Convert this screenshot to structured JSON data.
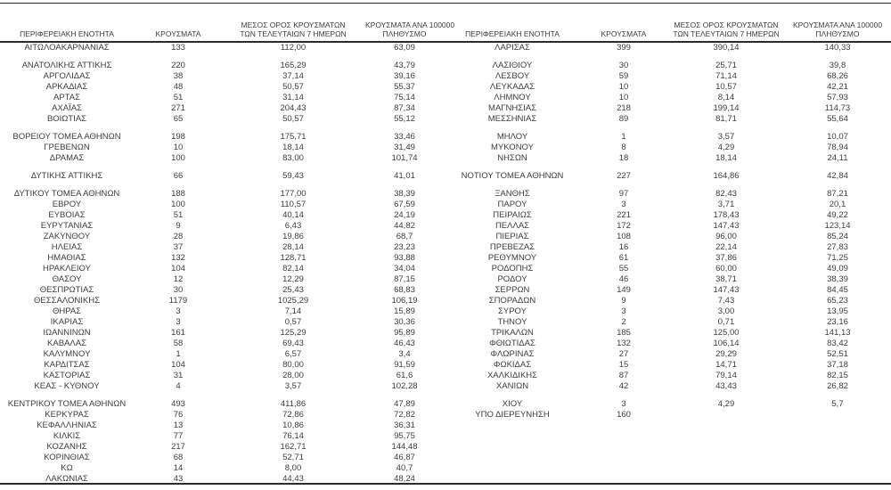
{
  "page": {
    "background_color": "#ffffff",
    "text_color": "#3d3d3d",
    "rule_color": "#2b2b2b"
  },
  "columns": {
    "region": "ΠΕΡΙΦΕΡΕΙΑΚΗ ΕΝΟΤΗΤΑ",
    "cases": "ΚΡΟΥΣΜΑΤΑ",
    "avg7_line1": "ΜΕΣΟΣ ΟΡΟΣ ΚΡΟΥΣΜΑΤΩΝ",
    "avg7_line2": "ΤΩΝ ΤΕΛΕΥΤΑΙΩΝ 7 ΗΜΕΡΩΝ",
    "per100k_line1": "ΚΡΟΥΣΜΑΤΑ ΑΝΑ 100000",
    "per100k_line2": "ΠΛΗΘΥΣΜΟ"
  },
  "left_table": {
    "groups": [
      [
        [
          "ΑΙΤΩΛΟΑΚΑΡΝΑΝΙΑΣ",
          "133",
          "112,00",
          "63,09"
        ]
      ],
      [
        [
          "ΑΝΑΤΟΛΙΚΗΣ ΑΤΤΙΚΗΣ",
          "220",
          "165,29",
          "43,79"
        ],
        [
          "ΑΡΓΟΛΙΔΑΣ",
          "38",
          "37,14",
          "39,16"
        ],
        [
          "ΑΡΚΑΔΙΑΣ",
          "48",
          "50,57",
          "55,37"
        ],
        [
          "ΑΡΤΑΣ",
          "51",
          "31,14",
          "75,14"
        ],
        [
          "ΑΧΑΪΑΣ",
          "271",
          "204,43",
          "87,34"
        ],
        [
          "ΒΟΙΩΤΙΑΣ",
          "65",
          "50,57",
          "55,12"
        ]
      ],
      [
        [
          "ΒΟΡΕΙΟΥ ΤΟΜΕΑ ΑΘΗΝΩΝ",
          "198",
          "175,71",
          "33,46"
        ],
        [
          "ΓΡΕΒΕΝΩΝ",
          "10",
          "18,14",
          "31,49"
        ],
        [
          "ΔΡΑΜΑΣ",
          "100",
          "83,00",
          "101,74"
        ]
      ],
      [
        [
          "ΔΥΤΙΚΗΣ ΑΤΤΙΚΗΣ",
          "66",
          "59,43",
          "41,01"
        ]
      ],
      [
        [
          "ΔΥΤΙΚΟΥ ΤΟΜΕΑ ΑΘΗΝΩΝ",
          "188",
          "177,00",
          "38,39"
        ],
        [
          "ΕΒΡΟΥ",
          "100",
          "110,57",
          "67,59"
        ],
        [
          "ΕΥΒΟΙΑΣ",
          "51",
          "40,14",
          "24,19"
        ],
        [
          "ΕΥΡΥΤΑΝΙΑΣ",
          "9",
          "6,43",
          "44,82"
        ],
        [
          "ΖΑΚΥΝΘΟΥ",
          "28",
          "19,86",
          "68,7"
        ],
        [
          "ΗΛΕΙΑΣ",
          "37",
          "28,14",
          "23,23"
        ],
        [
          "ΗΜΑΘΙΑΣ",
          "132",
          "128,71",
          "93,88"
        ],
        [
          "ΗΡΑΚΛΕΙΟΥ",
          "104",
          "82,14",
          "34,04"
        ],
        [
          "ΘΑΣΟΥ",
          "12",
          "12,29",
          "87,15"
        ],
        [
          "ΘΕΣΠΡΩΤΙΑΣ",
          "30",
          "25,43",
          "68,83"
        ],
        [
          "ΘΕΣΣΑΛΟΝΙΚΗΣ",
          "1179",
          "1025,29",
          "106,19"
        ],
        [
          "ΘΗΡΑΣ",
          "3",
          "7,14",
          "15,89"
        ],
        [
          "ΙΚΑΡΙΑΣ",
          "3",
          "0,57",
          "30,36"
        ],
        [
          "ΙΩΑΝΝΙΝΩΝ",
          "161",
          "125,29",
          "95,89"
        ],
        [
          "ΚΑΒΑΛΑΣ",
          "58",
          "69,43",
          "46,43"
        ],
        [
          "ΚΑΛΥΜΝΟΥ",
          "1",
          "6,57",
          "3,4"
        ],
        [
          "ΚΑΡΔΙΤΣΑΣ",
          "104",
          "80,00",
          "91,59"
        ],
        [
          "ΚΑΣΤΟΡΙΑΣ",
          "31",
          "28,00",
          "61,6"
        ],
        [
          "ΚΕΑΣ - ΚΥΘΝΟΥ",
          "4",
          "3,57",
          "102,28"
        ]
      ],
      [
        [
          "ΚΕΝΤΡΙΚΟΥ ΤΟΜΕΑ ΑΘΗΝΩΝ",
          "493",
          "411,86",
          "47,89"
        ],
        [
          "ΚΕΡΚΥΡΑΣ",
          "76",
          "72,86",
          "72,82"
        ],
        [
          "ΚΕΦΑΛΛΗΝΙΑΣ",
          "13",
          "10,86",
          "36,31"
        ],
        [
          "ΚΙΛΚΙΣ",
          "77",
          "76,14",
          "95,75"
        ],
        [
          "ΚΟΖΑΝΗΣ",
          "217",
          "162,71",
          "144,48"
        ],
        [
          "ΚΟΡΙΝΘΙΑΣ",
          "68",
          "52,71",
          "46,87"
        ],
        [
          "ΚΩ",
          "14",
          "8,00",
          "40,7"
        ],
        [
          "ΛΑΚΩΝΙΑΣ",
          "43",
          "44,43",
          "48,24"
        ]
      ]
    ]
  },
  "right_table": {
    "groups": [
      [
        [
          "ΛΑΡΙΣΑΣ",
          "399",
          "390,14",
          "140,33"
        ]
      ],
      [
        [
          "ΛΑΣΙΘΙΟΥ",
          "30",
          "25,71",
          "39,8"
        ],
        [
          "ΛΕΣΒΟΥ",
          "59",
          "71,14",
          "68,26"
        ],
        [
          "ΛΕΥΚΑΔΑΣ",
          "10",
          "10,57",
          "42,21"
        ],
        [
          "ΛΗΜΝΟΥ",
          "10",
          "8,14",
          "57,93"
        ],
        [
          "ΜΑΓΝΗΣΙΑΣ",
          "218",
          "199,14",
          "114,73"
        ],
        [
          "ΜΕΣΣΗΝΙΑΣ",
          "89",
          "81,71",
          "55,64"
        ]
      ],
      [
        [
          "ΜΗΛΟΥ",
          "1",
          "3,57",
          "10,07"
        ],
        [
          "ΜΥΚΟΝΟΥ",
          "8",
          "4,29",
          "78,94"
        ],
        [
          "ΝΗΣΩΝ",
          "18",
          "18,14",
          "24,11"
        ]
      ],
      [
        [
          "ΝΟΤΙΟΥ ΤΟΜΕΑ ΑΘΗΝΩΝ",
          "227",
          "164,86",
          "42,84"
        ]
      ],
      [
        [
          "ΞΑΝΘΗΣ",
          "97",
          "82,43",
          "87,21"
        ],
        [
          "ΠΑΡΟΥ",
          "3",
          "3,71",
          "20,1"
        ],
        [
          "ΠΕΙΡΑΙΩΣ",
          "221",
          "178,43",
          "49,22"
        ],
        [
          "ΠΕΛΛΑΣ",
          "172",
          "147,43",
          "123,14"
        ],
        [
          "ΠΙΕΡΙΑΣ",
          "108",
          "96,00",
          "85,24"
        ],
        [
          "ΠΡΕΒΕΖΑΣ",
          "16",
          "22,14",
          "27,83"
        ],
        [
          "ΡΕΘΥΜΝΟΥ",
          "61",
          "37,86",
          "71,25"
        ],
        [
          "ΡΟΔΟΠΗΣ",
          "55",
          "60,00",
          "49,09"
        ],
        [
          "ΡΟΔΟΥ",
          "46",
          "38,71",
          "38,39"
        ],
        [
          "ΣΕΡΡΩΝ",
          "149",
          "147,43",
          "84,45"
        ],
        [
          "ΣΠΟΡΑΔΩΝ",
          "9",
          "7,43",
          "65,23"
        ],
        [
          "ΣΥΡΟΥ",
          "3",
          "3,00",
          "13,95"
        ],
        [
          "ΤΗΝΟΥ",
          "2",
          "0,71",
          "23,16"
        ],
        [
          "ΤΡΙΚΑΛΩΝ",
          "185",
          "125,00",
          "141,13"
        ],
        [
          "ΦΘΙΩΤΙΔΑΣ",
          "132",
          "106,14",
          "83,42"
        ],
        [
          "ΦΛΩΡΙΝΑΣ",
          "27",
          "29,29",
          "52,51"
        ],
        [
          "ΦΩΚΙΔΑΣ",
          "15",
          "14,71",
          "37,18"
        ],
        [
          "ΧΑΛΚΙΔΙΚΗΣ",
          "87",
          "79,14",
          "82,15"
        ],
        [
          "ΧΑΝΙΩΝ",
          "42",
          "43,43",
          "26,82"
        ]
      ],
      [
        [
          "ΧΙΟΥ",
          "3",
          "4,29",
          "5,7"
        ],
        [
          "ΥΠΟ ΔΙΕΡΕΥΝΗΣΗ",
          "160",
          "",
          ""
        ]
      ]
    ]
  }
}
